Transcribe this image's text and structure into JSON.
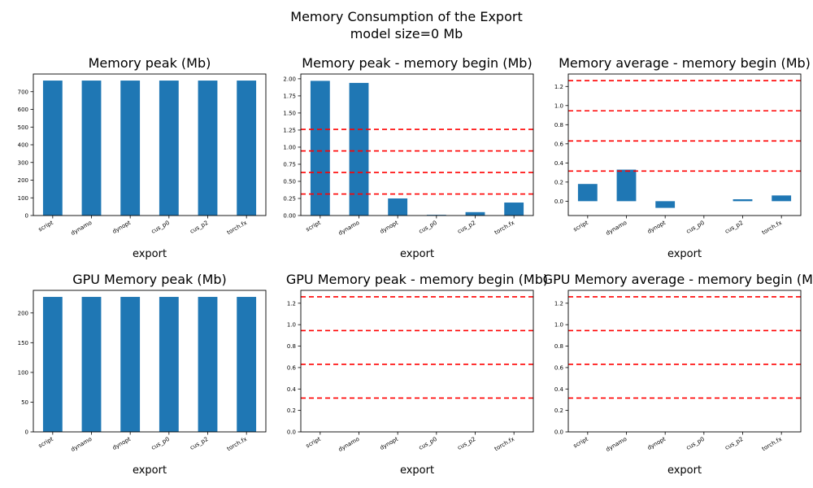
{
  "figure": {
    "title_line1": "Memory Consumption of the Export",
    "title_line2": "model size=0 Mb"
  },
  "colors": {
    "bar": "#1f77b4",
    "reference_line": "#ff0000"
  },
  "chart_data": [
    {
      "type": "bar",
      "title": "Memory peak (Mb)",
      "xlabel": "export",
      "categories": [
        "script",
        "dynamo",
        "dynopt",
        "cus_p0",
        "cus_p2",
        "torch.fx"
      ],
      "values": [
        763,
        763,
        763,
        763,
        763,
        763
      ],
      "ylim": [
        0,
        800
      ],
      "yticks": [
        0,
        100,
        200,
        300,
        400,
        500,
        600,
        700
      ],
      "ytick_labels": [
        "0",
        "100",
        "200",
        "300",
        "400",
        "500",
        "600",
        "700"
      ],
      "hlines": []
    },
    {
      "type": "bar",
      "title": "Memory peak - memory begin (Mb)",
      "xlabel": "export",
      "categories": [
        "script",
        "dynamo",
        "dynopt",
        "cus_p0",
        "cus_p2",
        "torch.fx"
      ],
      "values": [
        1.97,
        1.94,
        0.25,
        0.01,
        0.05,
        0.19
      ],
      "ylim": [
        0,
        2.07
      ],
      "yticks": [
        0,
        0.25,
        0.5,
        0.75,
        1.0,
        1.25,
        1.5,
        1.75,
        2.0
      ],
      "ytick_labels": [
        "0.00",
        "0.25",
        "0.50",
        "0.75",
        "1.00",
        "1.25",
        "1.50",
        "1.75",
        "2.00"
      ],
      "hlines": [
        0.315,
        0.63,
        0.945,
        1.26
      ]
    },
    {
      "type": "bar",
      "title": "Memory average - memory begin (Mb)",
      "xlabel": "export",
      "categories": [
        "script",
        "dynamo",
        "dynopt",
        "cus_p0",
        "cus_p2",
        "torch.fx"
      ],
      "values": [
        0.18,
        0.33,
        -0.07,
        0.0,
        0.02,
        0.06
      ],
      "ylim": [
        -0.15,
        1.33
      ],
      "yticks": [
        0,
        0.2,
        0.4,
        0.6,
        0.8,
        1.0,
        1.2
      ],
      "ytick_labels": [
        "0.0",
        "0.2",
        "0.4",
        "0.6",
        "0.8",
        "1.0",
        "1.2"
      ],
      "hlines": [
        0.315,
        0.63,
        0.945,
        1.26
      ]
    },
    {
      "type": "bar",
      "title": "GPU Memory peak (Mb)",
      "xlabel": "export",
      "categories": [
        "script",
        "dynamo",
        "dynopt",
        "cus_p0",
        "cus_p2",
        "torch.fx"
      ],
      "values": [
        227,
        227,
        227,
        227,
        227,
        227
      ],
      "ylim": [
        0,
        238
      ],
      "yticks": [
        0,
        50,
        100,
        150,
        200
      ],
      "ytick_labels": [
        "0",
        "50",
        "100",
        "150",
        "200"
      ],
      "hlines": []
    },
    {
      "type": "bar",
      "title": "GPU Memory peak - memory begin (Mb)",
      "xlabel": "export",
      "categories": [
        "script",
        "dynamo",
        "dynopt",
        "cus_p0",
        "cus_p2",
        "torch.fx"
      ],
      "values": [
        0,
        0,
        0,
        0,
        0,
        0
      ],
      "ylim": [
        0,
        1.32
      ],
      "yticks": [
        0,
        0.2,
        0.4,
        0.6,
        0.8,
        1.0,
        1.2
      ],
      "ytick_labels": [
        "0.0",
        "0.2",
        "0.4",
        "0.6",
        "0.8",
        "1.0",
        "1.2"
      ],
      "hlines": [
        0.315,
        0.63,
        0.945,
        1.26
      ]
    },
    {
      "type": "bar",
      "title": "GPU Memory average - memory begin (Mb)",
      "xlabel": "export",
      "categories": [
        "script",
        "dynamo",
        "dynopt",
        "cus_p0",
        "cus_p2",
        "torch.fx"
      ],
      "values": [
        0,
        0,
        0,
        0,
        0,
        0
      ],
      "ylim": [
        0,
        1.32
      ],
      "yticks": [
        0,
        0.2,
        0.4,
        0.6,
        0.8,
        1.0,
        1.2
      ],
      "ytick_labels": [
        "0.0",
        "0.2",
        "0.4",
        "0.6",
        "0.8",
        "1.0",
        "1.2"
      ],
      "hlines": [
        0.315,
        0.63,
        0.945,
        1.26
      ]
    }
  ]
}
